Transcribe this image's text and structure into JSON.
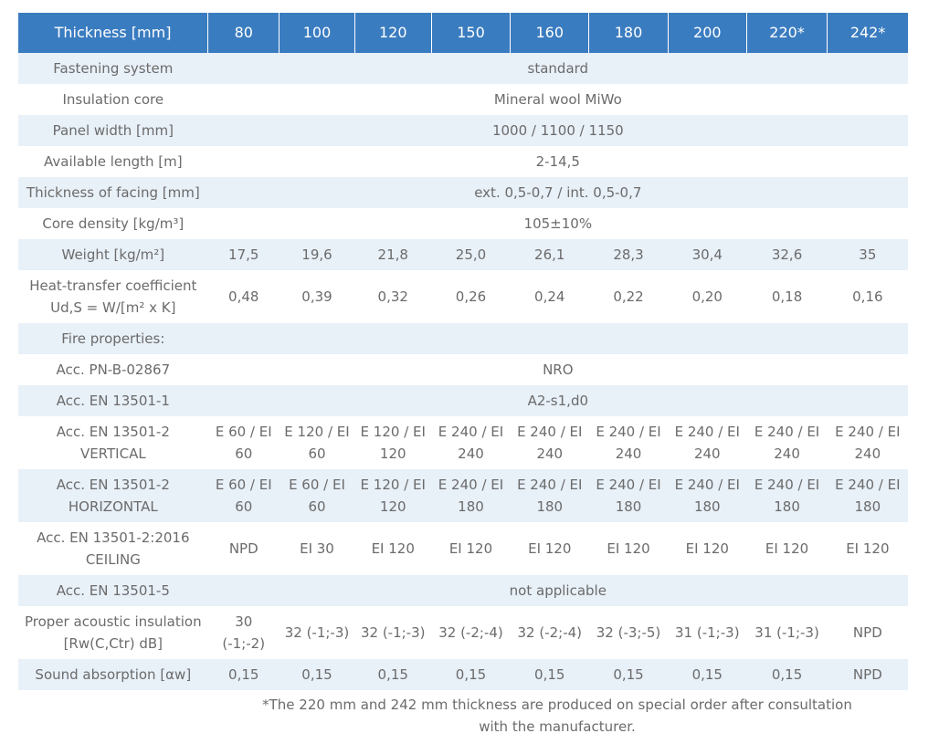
{
  "table": {
    "header": [
      "Thickness [mm]",
      "80",
      "100",
      "120",
      "150",
      "160",
      "180",
      "200",
      "220*",
      "242*"
    ],
    "rows": [
      {
        "label": "Fastening system",
        "span": "standard"
      },
      {
        "label": "Insulation core",
        "span": "Mineral wool MiWo"
      },
      {
        "label": "Panel width [mm]",
        "span": "1000 / 1100 / 1150"
      },
      {
        "label": "Available length [m]",
        "span": "2-14,5"
      },
      {
        "label": "Thickness of facing [mm]",
        "span": "ext. 0,5-0,7 / int. 0,5-0,7"
      },
      {
        "label": "Core density [kg/m³]",
        "span": "105±10%"
      },
      {
        "label": "Weight [kg/m²]",
        "cells": [
          "17,5",
          "19,6",
          "21,8",
          "25,0",
          "26,1",
          "28,3",
          "30,4",
          "32,6",
          "35"
        ]
      },
      {
        "label": "Heat-transfer coefficient Ud,S = W/[m² x K]",
        "cells": [
          "0,48",
          "0,39",
          "0,32",
          "0,26",
          "0,24",
          "0,22",
          "0,20",
          "0,18",
          "0,16"
        ]
      },
      {
        "label": "Fire properties:",
        "span": ""
      },
      {
        "label": "Acc. PN-B-02867",
        "span": "NRO"
      },
      {
        "label": "Acc. EN 13501-1",
        "span": "A2-s1,d0"
      },
      {
        "label": "Acc. EN 13501-2 VERTICAL",
        "cells": [
          "E 60 / EI 60",
          "E 120 / EI 60",
          "E 120 / EI 120",
          "E 240 / EI 240",
          "E 240 / EI 240",
          "E 240 / EI 240",
          "E 240 / EI 240",
          "E 240 / EI 240",
          "E 240 / EI 240"
        ]
      },
      {
        "label": "Acc. EN 13501-2 HORIZONTAL",
        "cells": [
          "E 60 / EI 60",
          "E 60 / EI 60",
          "E 120 / EI 120",
          "E 240 / EI 180",
          "E 240 / EI 180",
          "E 240 / EI 180",
          "E 240 / EI 180",
          "E 240 / EI 180",
          "E 240 / EI 180"
        ]
      },
      {
        "label": "Acc. EN 13501-2:2016 CEILING",
        "cells": [
          "NPD",
          "EI 30",
          "EI 120",
          "EI 120",
          "EI 120",
          "EI 120",
          "EI 120",
          "EI 120",
          "EI 120"
        ]
      },
      {
        "label": "Acc. EN 13501-5",
        "span": "not applicable"
      },
      {
        "label": "Proper acoustic insulation [Rw(C,Ctr) dB]",
        "cells": [
          "30 (-1;-2)",
          "32 (-1;-3)",
          "32 (-1;-3)",
          "32 (-2;-4)",
          "32 (-2;-4)",
          "32 (-3;-5)",
          "31 (-1;-3)",
          "31 (-1;-3)",
          "NPD"
        ]
      },
      {
        "label": "Sound absorption [αw]",
        "cells": [
          "0,15",
          "0,15",
          "0,15",
          "0,15",
          "0,15",
          "0,15",
          "0,15",
          "0,15",
          "NPD"
        ]
      }
    ]
  },
  "footnote": "*The 220 mm and 242 mm thickness are produced on special order after consultation with the manufacturer.",
  "colors": {
    "header_bg": "#3a7cc0",
    "stripe_bg": "#e8f0f8",
    "text": "#6b6b6b"
  }
}
